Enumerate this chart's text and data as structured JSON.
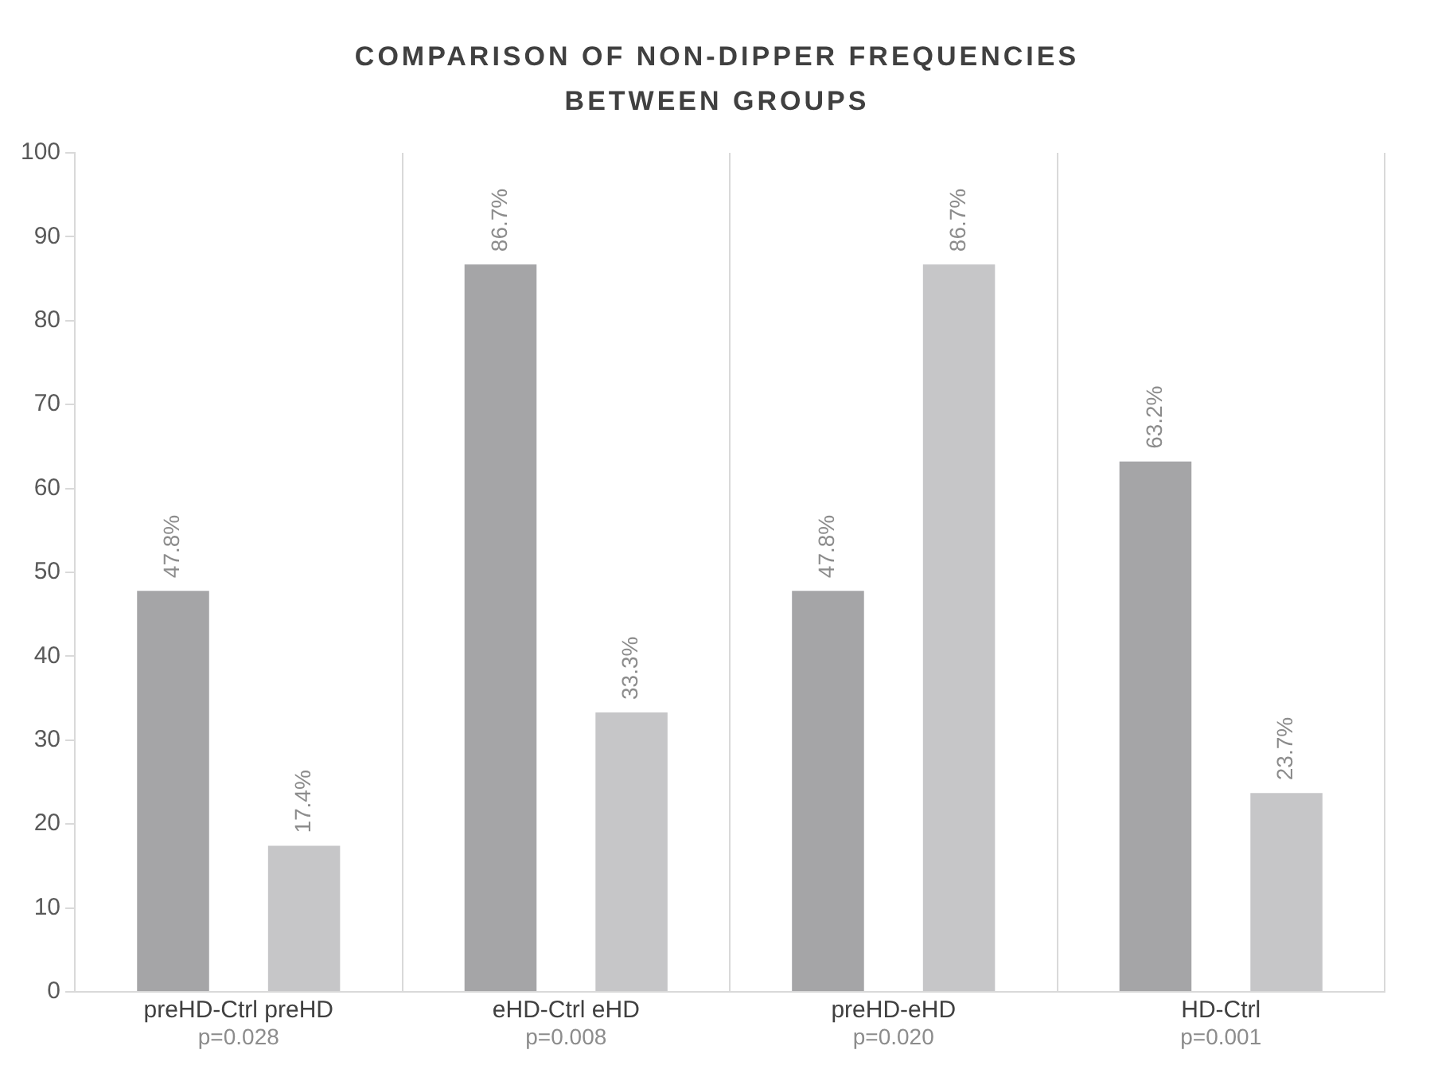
{
  "chart_data": {
    "type": "bar",
    "title": "COMPARISON OF NON-DIPPER FREQUENCIES BETWEEN GROUPS",
    "categories": [
      "preHD-Ctrl preHD",
      "eHD-Ctrl eHD",
      "preHD-eHD",
      "HD-Ctrl"
    ],
    "series": [
      {
        "color": "#a5a5a7",
        "values": [
          47.8,
          86.7,
          47.8,
          63.2
        ],
        "value_labels": [
          "47.8%",
          "86.7%",
          "47.8%",
          "63.2%"
        ]
      },
      {
        "color": "#c6c6c8",
        "values": [
          17.4,
          33.3,
          86.7,
          23.7
        ],
        "value_labels": [
          "17.4%",
          "33.3%",
          "86.7%",
          "23.7%"
        ]
      }
    ],
    "ylim": [
      0,
      100
    ],
    "yticks": [
      0,
      10,
      20,
      30,
      40,
      50,
      60,
      70,
      80,
      90,
      100
    ],
    "grid": "x",
    "legend": false,
    "annotations": [
      "p=0.028",
      "p=0.008",
      "p=0.020",
      "p=0.001"
    ]
  }
}
